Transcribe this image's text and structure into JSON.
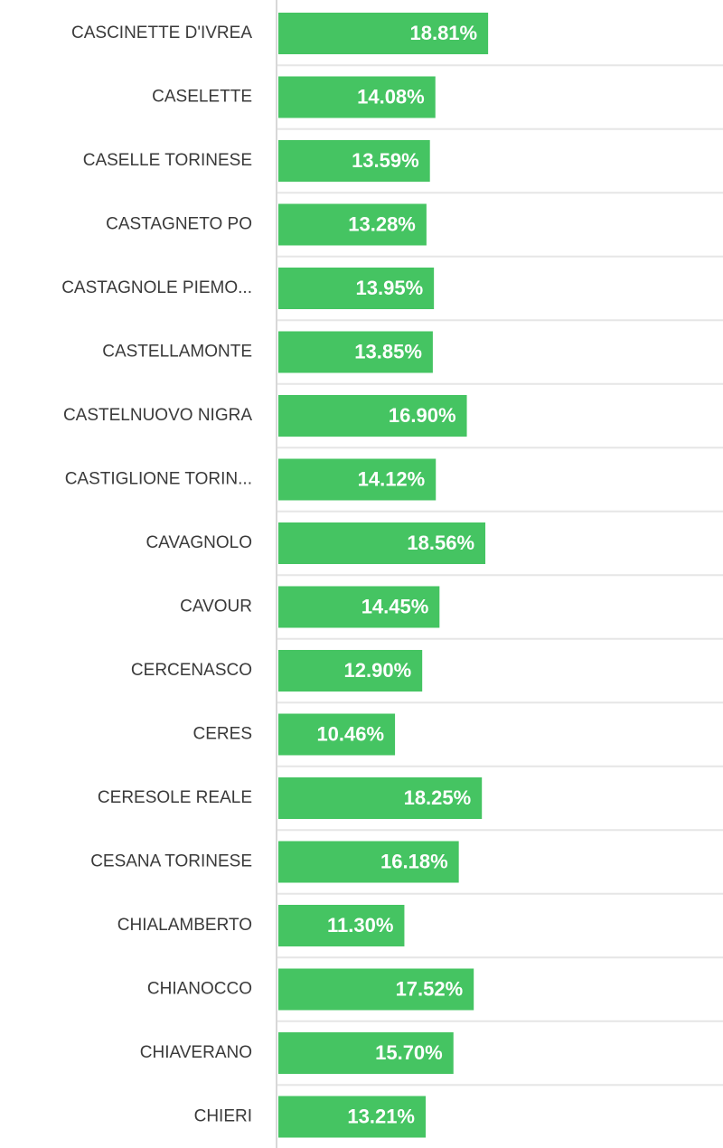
{
  "chart_data": {
    "type": "bar",
    "orientation": "horizontal",
    "bar_color": "#45c462",
    "value_label_color": "#ffffff",
    "value_suffix": "%",
    "xlim": [
      0,
      40
    ],
    "grid": true,
    "categories": [
      "CASCINETTE D'IVREA",
      "CASELETTE",
      "CASELLE TORINESE",
      "CASTAGNETO PO",
      "CASTAGNOLE PIEMO...",
      "CASTELLAMONTE",
      "CASTELNUOVO NIGRA",
      "CASTIGLIONE TORIN...",
      "CAVAGNOLO",
      "CAVOUR",
      "CERCENASCO",
      "CERES",
      "CERESOLE REALE",
      "CESANA TORINESE",
      "CHIALAMBERTO",
      "CHIANOCCO",
      "CHIAVERANO",
      "CHIERI"
    ],
    "values": [
      18.81,
      14.08,
      13.59,
      13.28,
      13.95,
      13.85,
      16.9,
      14.12,
      18.56,
      14.45,
      12.9,
      10.46,
      18.25,
      16.18,
      11.3,
      17.52,
      15.7,
      13.21
    ],
    "labels": [
      "18.81%",
      "14.08%",
      "13.59%",
      "13.28%",
      "13.95%",
      "13.85%",
      "16.90%",
      "14.12%",
      "18.56%",
      "14.45%",
      "12.90%",
      "10.46%",
      "18.25%",
      "16.18%",
      "11.30%",
      "17.52%",
      "15.70%",
      "13.21%"
    ]
  }
}
